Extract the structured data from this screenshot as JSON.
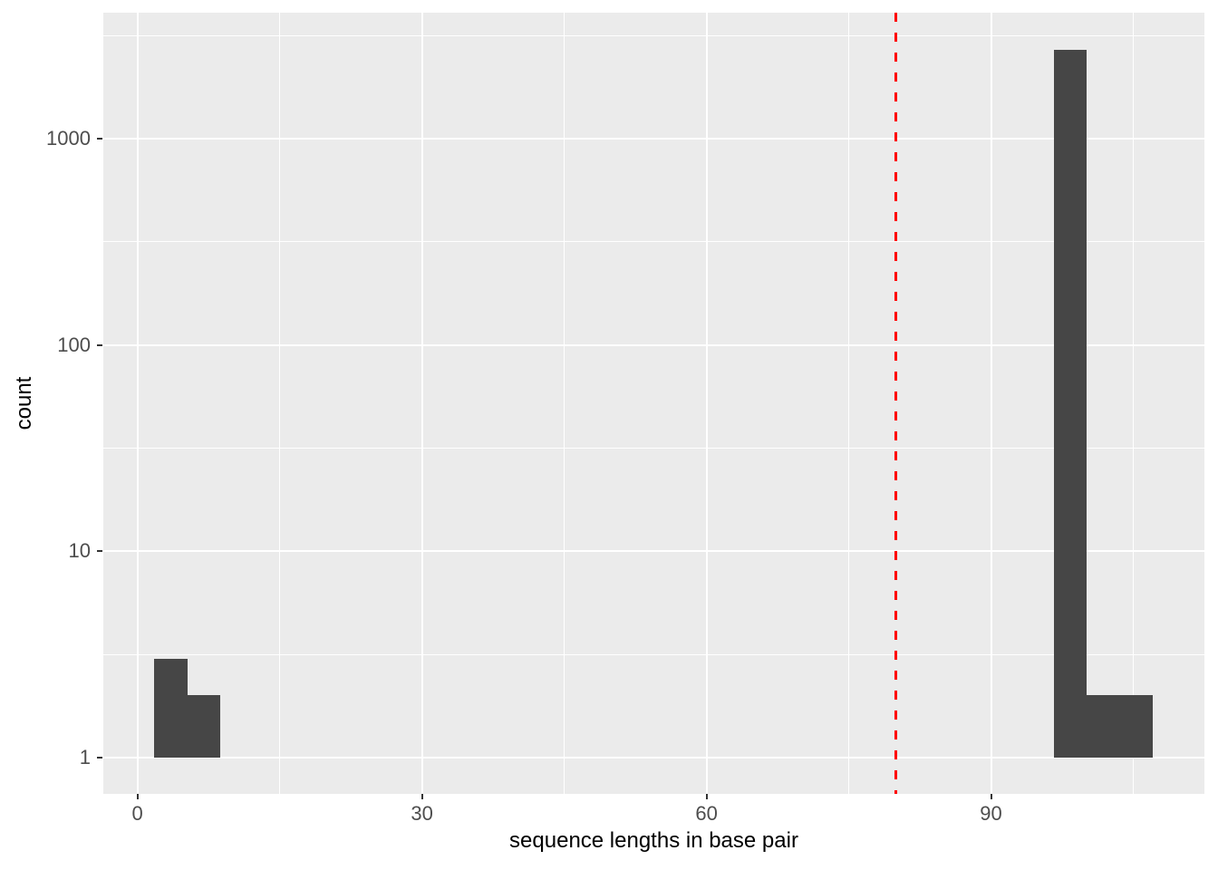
{
  "figure": {
    "bg_color": "#FFFFFF",
    "panel_bg_color": "#EBEBEB",
    "grid_color": "#FFFFFF",
    "bar_color": "#464646",
    "tick_label_color": "#4D4D4D",
    "tick_mark_color": "#333333",
    "axis_title_color": "#000000"
  },
  "chart_data": {
    "type": "bar",
    "subtype": "histogram",
    "title": "",
    "xlabel": "sequence lengths in base pair",
    "ylabel": "count",
    "x_scale": "linear",
    "y_scale": "log10",
    "grid": true,
    "legend": null,
    "x_ticks": [
      0,
      30,
      60,
      90
    ],
    "x_minor_ticks": [
      15,
      45,
      75,
      105
    ],
    "y_ticks": [
      1,
      10,
      100,
      1000
    ],
    "y_minor_ticks": [
      3.162,
      31.62,
      316.2,
      3162
    ],
    "x_domain": [
      -3.6,
      112.5
    ],
    "y_log10_domain": [
      -0.176,
      3.61
    ],
    "baseline_count": 1,
    "bars": [
      {
        "x_start": 1.75,
        "x_end": 5.25,
        "count": 3
      },
      {
        "x_start": 5.25,
        "x_end": 8.75,
        "count": 2
      },
      {
        "x_start": 96.6,
        "x_end": 100.1,
        "count": 2700
      },
      {
        "x_start": 100.1,
        "x_end": 107.1,
        "count": 2
      }
    ],
    "vline": {
      "x": 80,
      "color": "#FF0000",
      "style": "dashed",
      "width": 3,
      "dash": 10,
      "gap": 12
    }
  }
}
